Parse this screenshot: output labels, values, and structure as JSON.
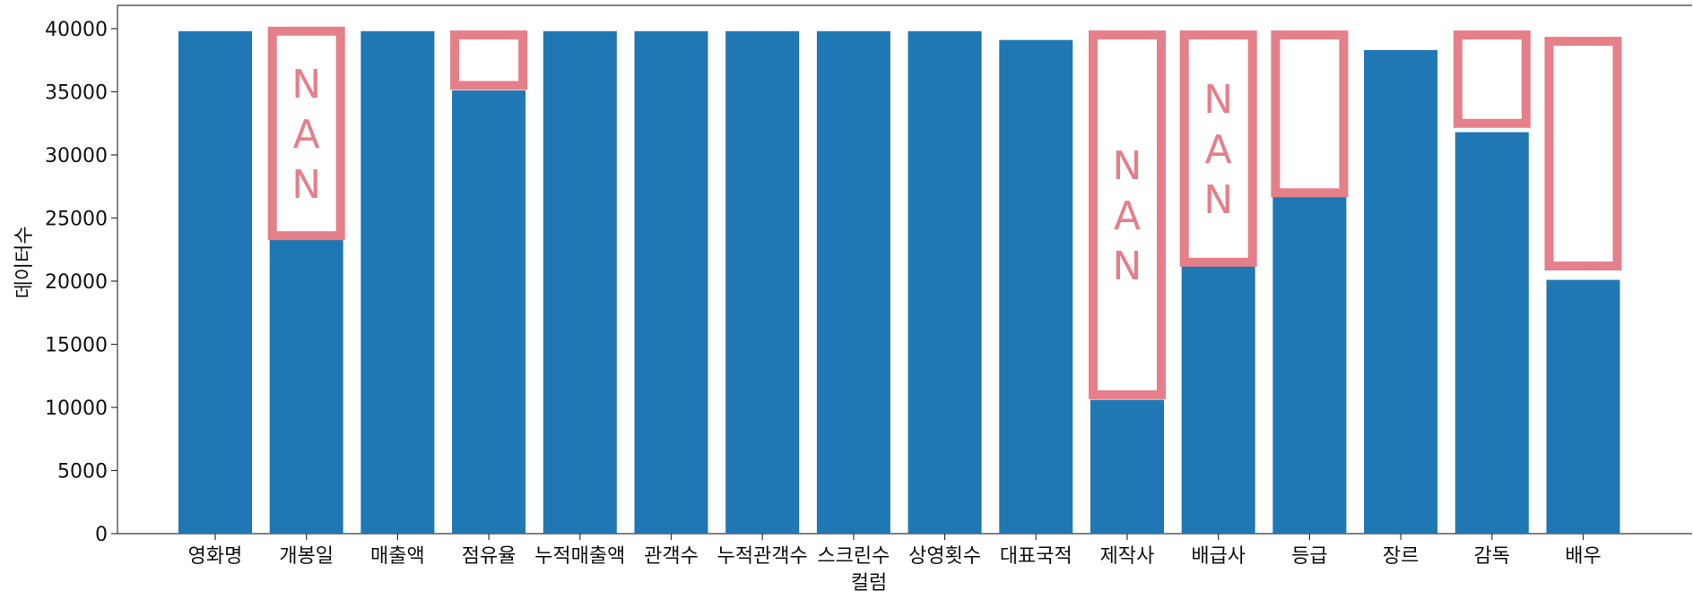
{
  "chart_data": {
    "type": "bar",
    "title": "",
    "xlabel": "컬럼",
    "ylabel": "데이터수",
    "ylim": [
      0,
      40000
    ],
    "yticks": [
      0,
      5000,
      10000,
      15000,
      20000,
      25000,
      30000,
      35000,
      40000
    ],
    "grid": false,
    "categories": [
      "영화명",
      "개봉일",
      "매출액",
      "점유율",
      "누적매출액",
      "관객수",
      "누적관객수",
      "스크린수",
      "상영횟수",
      "대표국적",
      "제작사",
      "배급사",
      "등급",
      "장르",
      "감독",
      "배우"
    ],
    "values": [
      39800,
      23400,
      39800,
      35100,
      39800,
      39800,
      39800,
      39800,
      39800,
      39100,
      10600,
      21200,
      26700,
      38300,
      31800,
      20100
    ],
    "bar_color": "#1f77b4",
    "annotations": [
      {
        "category": "개봉일",
        "from": 23600,
        "to": 39800,
        "text": "NAN",
        "color": "#e57f89"
      },
      {
        "category": "점유율",
        "from": 35500,
        "to": 39500,
        "text": "",
        "color": "#e57f89"
      },
      {
        "category": "제작사",
        "from": 11000,
        "to": 39500,
        "text": "NAN",
        "color": "#e57f89"
      },
      {
        "category": "배급사",
        "from": 21500,
        "to": 39500,
        "text": "NAN",
        "color": "#e57f89"
      },
      {
        "category": "등급",
        "from": 27000,
        "to": 39500,
        "text": "",
        "color": "#e57f89"
      },
      {
        "category": "감독",
        "from": 32500,
        "to": 39500,
        "text": "",
        "color": "#e57f89"
      },
      {
        "category": "배우",
        "from": 21200,
        "to": 39000,
        "text": "",
        "color": "#e57f89"
      }
    ]
  }
}
